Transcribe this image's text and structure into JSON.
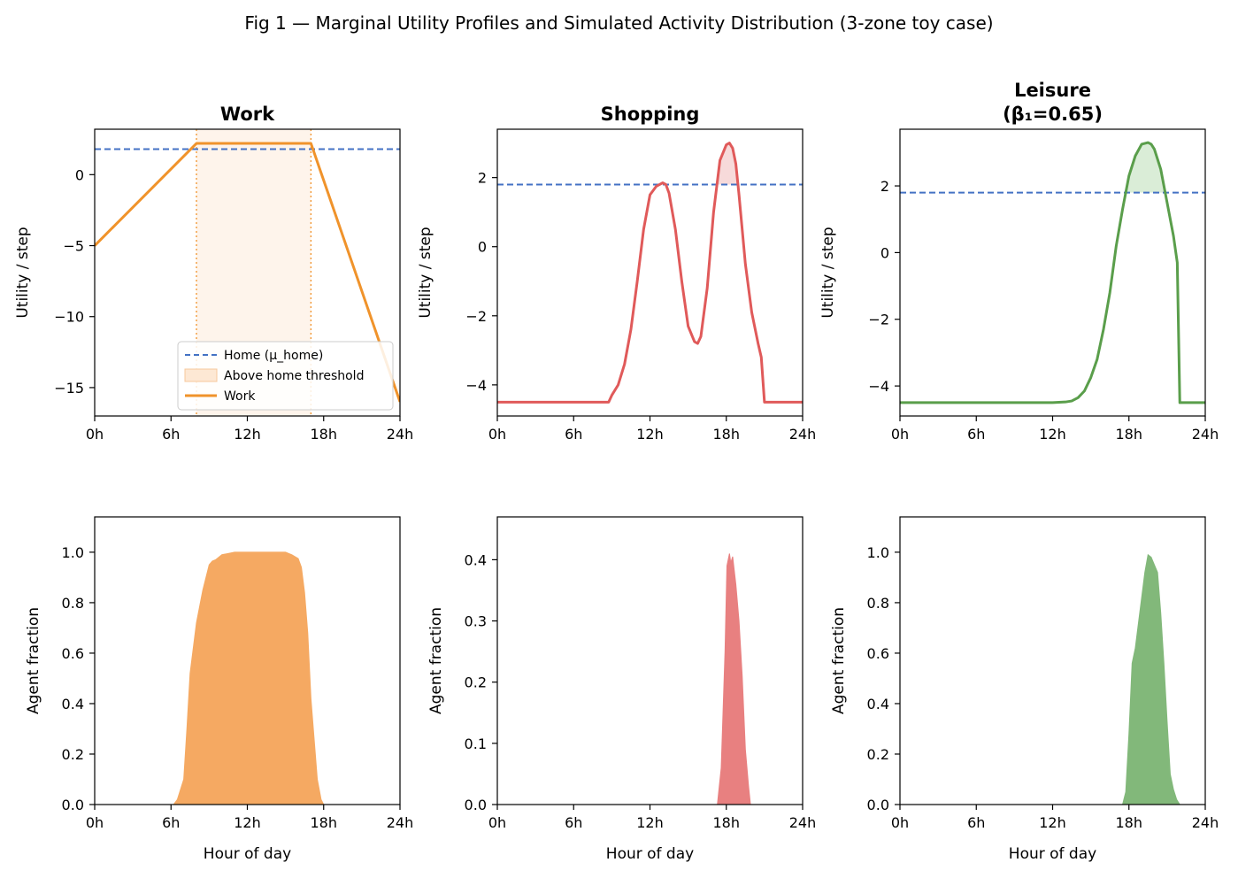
{
  "figure_title": "Fig 1 — Marginal Utility Profiles and Simulated Activity Distribution (3-zone toy case)",
  "chart_data": [
    {
      "id": "work-utility",
      "type": "line",
      "title_lines": [
        "Work"
      ],
      "xlabel": "",
      "ylabel": "Utility / step",
      "xlim": [
        0,
        24
      ],
      "ylim": [
        -17,
        3.2
      ],
      "xticks": [
        0,
        6,
        12,
        18,
        24
      ],
      "xtick_labels": [
        "0h",
        "6h",
        "12h",
        "18h",
        "24h"
      ],
      "yticks": [
        -15,
        -10,
        -5,
        0
      ],
      "ytick_labels": [
        "−15",
        "−10",
        "−5",
        "0"
      ],
      "color": "#f0932b",
      "home_threshold": 1.8,
      "threshold_color": "#4472c4",
      "fill_color": "#fde8d4",
      "shaded_span": [
        8,
        17
      ],
      "x": [
        0,
        8,
        17,
        24
      ],
      "y": [
        -5,
        2.2,
        2.2,
        -16
      ],
      "legend": {
        "position": "lower right",
        "entries": [
          "Home (μ_home)",
          "Above home threshold",
          "Work"
        ]
      }
    },
    {
      "id": "shopping-utility",
      "type": "line",
      "title_lines": [
        "Shopping"
      ],
      "xlabel": "",
      "ylabel": "Utility / step",
      "xlim": [
        0,
        24
      ],
      "ylim": [
        -4.9,
        3.4
      ],
      "xticks": [
        0,
        6,
        12,
        18,
        24
      ],
      "xtick_labels": [
        "0h",
        "6h",
        "12h",
        "18h",
        "24h"
      ],
      "yticks": [
        -4,
        -2,
        0,
        2
      ],
      "ytick_labels": [
        "−4",
        "−2",
        "0",
        "2"
      ],
      "color": "#e05a5a",
      "home_threshold": 1.8,
      "threshold_color": "#4472c4",
      "fill_color": "#f6d3d3",
      "x": [
        0,
        8.75,
        9,
        9.5,
        10,
        10.5,
        11,
        11.5,
        12,
        12.5,
        13,
        13.25,
        13.5,
        14,
        14.5,
        15,
        15.5,
        15.75,
        16,
        16.5,
        17,
        17.5,
        18,
        18.25,
        18.5,
        18.75,
        19,
        19.5,
        20,
        20.5,
        20.75,
        21,
        24
      ],
      "y": [
        -4.5,
        -4.5,
        -4.3,
        -4.0,
        -3.4,
        -2.4,
        -1.0,
        0.5,
        1.5,
        1.75,
        1.85,
        1.8,
        1.55,
        0.5,
        -1.0,
        -2.3,
        -2.75,
        -2.8,
        -2.6,
        -1.2,
        1.0,
        2.5,
        2.95,
        3.0,
        2.85,
        2.4,
        1.5,
        -0.5,
        -1.9,
        -2.8,
        -3.2,
        -4.5,
        -4.5
      ]
    },
    {
      "id": "leisure-utility",
      "type": "line",
      "title_lines": [
        "Leisure",
        "(β₁=0.65)"
      ],
      "xlabel": "",
      "ylabel": "Utility / step",
      "xlim": [
        0,
        24
      ],
      "ylim": [
        -4.9,
        3.7
      ],
      "xticks": [
        0,
        6,
        12,
        18,
        24
      ],
      "xtick_labels": [
        "0h",
        "6h",
        "12h",
        "18h",
        "24h"
      ],
      "yticks": [
        -4,
        -2,
        0,
        2
      ],
      "ytick_labels": [
        "−4",
        "−2",
        "0",
        "2"
      ],
      "color": "#5a9e4b",
      "home_threshold": 1.8,
      "threshold_color": "#4472c4",
      "fill_color": "#d4ead0",
      "x": [
        0,
        12,
        13,
        13.5,
        14,
        14.5,
        15,
        15.5,
        16,
        16.5,
        17,
        17.5,
        18,
        18.5,
        19,
        19.5,
        19.75,
        20,
        20.5,
        21,
        21.5,
        21.8,
        22.0,
        24
      ],
      "y": [
        -4.5,
        -4.5,
        -4.48,
        -4.45,
        -4.35,
        -4.15,
        -3.75,
        -3.2,
        -2.3,
        -1.2,
        0.2,
        1.3,
        2.3,
        2.9,
        3.25,
        3.3,
        3.25,
        3.1,
        2.5,
        1.5,
        0.5,
        -0.3,
        -4.5,
        -4.5
      ]
    },
    {
      "id": "work-distribution",
      "type": "area",
      "title_lines": [],
      "xlabel": "Hour of day",
      "ylabel": "Agent fraction",
      "xlim": [
        0,
        24
      ],
      "ylim": [
        0,
        1.14
      ],
      "xticks": [
        0,
        6,
        12,
        18,
        24
      ],
      "xtick_labels": [
        "0h",
        "6h",
        "12h",
        "18h",
        "24h"
      ],
      "yticks": [
        0,
        0.2,
        0.4,
        0.6,
        0.8,
        1.0
      ],
      "ytick_labels": [
        "0.0",
        "0.2",
        "0.4",
        "0.6",
        "0.8",
        "1.0"
      ],
      "color": "#f5a962",
      "x": [
        0,
        6.2,
        6.5,
        7,
        7.25,
        7.5,
        8,
        8.5,
        9,
        9.25,
        9.5,
        9.75,
        10,
        10.5,
        11,
        12,
        13,
        14,
        15,
        15.5,
        16,
        16.25,
        16.5,
        16.75,
        17,
        17.5,
        17.8,
        18,
        24
      ],
      "y": [
        0,
        0,
        0.02,
        0.1,
        0.3,
        0.52,
        0.72,
        0.85,
        0.95,
        0.965,
        0.97,
        0.98,
        0.99,
        0.995,
        1.0,
        1.0,
        1.0,
        1.0,
        1.0,
        0.99,
        0.975,
        0.94,
        0.84,
        0.68,
        0.42,
        0.1,
        0.02,
        0,
        0
      ]
    },
    {
      "id": "shopping-distribution",
      "type": "area",
      "title_lines": [],
      "xlabel": "Hour of day",
      "ylabel": "Agent fraction",
      "xlim": [
        0,
        24
      ],
      "ylim": [
        0,
        0.47
      ],
      "xticks": [
        0,
        6,
        12,
        18,
        24
      ],
      "xtick_labels": [
        "0h",
        "6h",
        "12h",
        "18h",
        "24h"
      ],
      "yticks": [
        0,
        0.1,
        0.2,
        0.3,
        0.4
      ],
      "ytick_labels": [
        "0.0",
        "0.1",
        "0.2",
        "0.3",
        "0.4"
      ],
      "color": "#e88080",
      "x": [
        0,
        17.3,
        17.6,
        17.9,
        18.05,
        18.15,
        18.25,
        18.35,
        18.5,
        18.75,
        19.0,
        19.25,
        19.5,
        19.75,
        19.9,
        24
      ],
      "y": [
        0,
        0,
        0.06,
        0.25,
        0.39,
        0.4,
        0.41,
        0.395,
        0.405,
        0.36,
        0.3,
        0.21,
        0.09,
        0.03,
        0,
        0
      ]
    },
    {
      "id": "leisure-distribution",
      "type": "area",
      "title_lines": [],
      "xlabel": "Hour of day",
      "ylabel": "Agent fraction",
      "xlim": [
        0,
        24
      ],
      "ylim": [
        0,
        1.14
      ],
      "xticks": [
        0,
        6,
        12,
        18,
        24
      ],
      "xtick_labels": [
        "0h",
        "6h",
        "12h",
        "18h",
        "24h"
      ],
      "yticks": [
        0,
        0.2,
        0.4,
        0.6,
        0.8,
        1.0
      ],
      "ytick_labels": [
        "0.0",
        "0.2",
        "0.4",
        "0.6",
        "0.8",
        "1.0"
      ],
      "color": "#82b87a",
      "x": [
        0,
        17.5,
        17.75,
        18,
        18.25,
        18.5,
        18.75,
        19,
        19.25,
        19.5,
        19.75,
        20,
        20.25,
        20.5,
        20.75,
        21,
        21.25,
        21.5,
        21.75,
        22,
        24
      ],
      "y": [
        0,
        0,
        0.05,
        0.28,
        0.56,
        0.62,
        0.72,
        0.82,
        0.92,
        0.99,
        0.98,
        0.95,
        0.92,
        0.76,
        0.56,
        0.33,
        0.12,
        0.06,
        0.02,
        0,
        0
      ]
    }
  ]
}
